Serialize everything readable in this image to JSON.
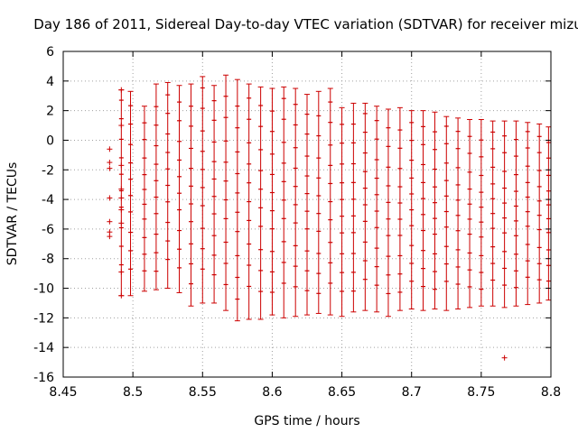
{
  "chart_data": {
    "type": "scatter",
    "title": "Day 186 of 2011, Sidereal Day-to-day VTEC variation (SDTVAR) for receiver mizu",
    "xlabel": "GPS time / hours",
    "ylabel": "SDTVAR / TECUs",
    "xlim": [
      8.45,
      8.8
    ],
    "ylim": [
      -16,
      6
    ],
    "x_ticks": [
      "8.45",
      "8.5",
      "8.55",
      "8.6",
      "8.65",
      "8.7",
      "8.75",
      "8.8"
    ],
    "x_tick_values": [
      8.45,
      8.5,
      8.55,
      8.6,
      8.65,
      8.7,
      8.75,
      8.8
    ],
    "y_ticks": [
      "-16",
      "-14",
      "-12",
      "-10",
      "-8",
      "-6",
      "-4",
      "-2",
      "0",
      "2",
      "4",
      "6"
    ],
    "y_tick_values": [
      -16,
      -14,
      -12,
      -10,
      -8,
      -6,
      -4,
      -2,
      0,
      2,
      4,
      6
    ],
    "grid": true,
    "color": "#cc0000",
    "error_bars": [
      {
        "x": 8.4917,
        "low": -10.5,
        "high": 3.4
      },
      {
        "x": 8.4983,
        "low": -10.5,
        "high": 3.3
      },
      {
        "x": 8.5083,
        "low": -10.2,
        "high": 2.3
      },
      {
        "x": 8.5167,
        "low": -10.1,
        "high": 3.8
      },
      {
        "x": 8.525,
        "low": -10.0,
        "high": 3.9
      },
      {
        "x": 8.5333,
        "low": -10.3,
        "high": 3.7
      },
      {
        "x": 8.5417,
        "low": -11.2,
        "high": 3.8
      },
      {
        "x": 8.55,
        "low": -11.0,
        "high": 4.3
      },
      {
        "x": 8.5583,
        "low": -11.0,
        "high": 3.7
      },
      {
        "x": 8.5667,
        "low": -11.5,
        "high": 4.4
      },
      {
        "x": 8.575,
        "low": -12.2,
        "high": 4.1
      },
      {
        "x": 8.5833,
        "low": -12.1,
        "high": 3.8
      },
      {
        "x": 8.5917,
        "low": -12.1,
        "high": 3.6
      },
      {
        "x": 8.6,
        "low": -11.8,
        "high": 3.5
      },
      {
        "x": 8.6083,
        "low": -12.0,
        "high": 3.6
      },
      {
        "x": 8.6167,
        "low": -11.9,
        "high": 3.5
      },
      {
        "x": 8.625,
        "low": -11.8,
        "high": 3.1
      },
      {
        "x": 8.6333,
        "low": -11.7,
        "high": 3.3
      },
      {
        "x": 8.6417,
        "low": -11.8,
        "high": 3.5
      },
      {
        "x": 8.65,
        "low": -11.9,
        "high": 2.2
      },
      {
        "x": 8.6583,
        "low": -11.6,
        "high": 2.5
      },
      {
        "x": 8.6667,
        "low": -11.5,
        "high": 2.5
      },
      {
        "x": 8.675,
        "low": -11.6,
        "high": 2.3
      },
      {
        "x": 8.6833,
        "low": -11.9,
        "high": 2.1
      },
      {
        "x": 8.6917,
        "low": -11.5,
        "high": 2.2
      },
      {
        "x": 8.7,
        "low": -11.4,
        "high": 2.0
      },
      {
        "x": 8.7083,
        "low": -11.5,
        "high": 2.0
      },
      {
        "x": 8.7167,
        "low": -11.4,
        "high": 1.9
      },
      {
        "x": 8.725,
        "low": -11.5,
        "high": 1.6
      },
      {
        "x": 8.7333,
        "low": -11.4,
        "high": 1.5
      },
      {
        "x": 8.7417,
        "low": -11.3,
        "high": 1.4
      },
      {
        "x": 8.75,
        "low": -11.2,
        "high": 1.4
      },
      {
        "x": 8.7583,
        "low": -11.2,
        "high": 1.3
      },
      {
        "x": 8.7667,
        "low": -11.3,
        "high": 1.3
      },
      {
        "x": 8.775,
        "low": -11.2,
        "high": 1.3
      },
      {
        "x": 8.7833,
        "low": -11.1,
        "high": 1.2
      },
      {
        "x": 8.7917,
        "low": -11.0,
        "high": 1.1
      },
      {
        "x": 8.7983,
        "low": -10.8,
        "high": 0.9
      }
    ],
    "scatter_points": [
      {
        "x": 8.4833,
        "y": -0.6
      },
      {
        "x": 8.4833,
        "y": -1.5
      },
      {
        "x": 8.4833,
        "y": -1.9
      },
      {
        "x": 8.4833,
        "y": -3.9
      },
      {
        "x": 8.4833,
        "y": -5.5
      },
      {
        "x": 8.4833,
        "y": -6.2
      },
      {
        "x": 8.4833,
        "y": -6.5
      },
      {
        "x": 8.4917,
        "y": 3.4
      },
      {
        "x": 8.4917,
        "y": 1.0
      },
      {
        "x": 8.4917,
        "y": -1.7
      },
      {
        "x": 8.4917,
        "y": -3.3
      },
      {
        "x": 8.4917,
        "y": -3.9
      },
      {
        "x": 8.4917,
        "y": -4.7
      },
      {
        "x": 8.4917,
        "y": -5.6
      },
      {
        "x": 8.4917,
        "y": -8.9
      },
      {
        "x": 8.4917,
        "y": -10.5
      },
      {
        "x": 8.7667,
        "y": -14.7
      }
    ]
  }
}
